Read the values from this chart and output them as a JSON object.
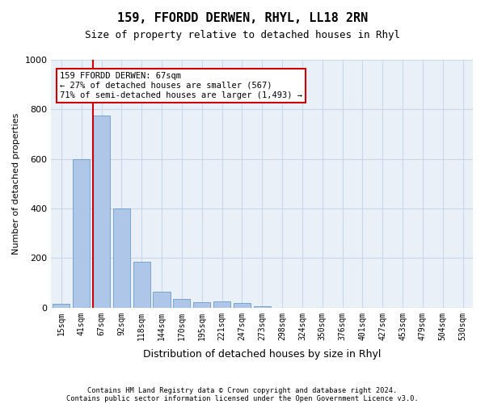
{
  "title1": "159, FFORDD DERWEN, RHYL, LL18 2RN",
  "title2": "Size of property relative to detached houses in Rhyl",
  "xlabel": "Distribution of detached houses by size in Rhyl",
  "ylabel": "Number of detached properties",
  "footnote1": "Contains HM Land Registry data © Crown copyright and database right 2024.",
  "footnote2": "Contains public sector information licensed under the Open Government Licence v3.0.",
  "bin_labels": [
    "15sqm",
    "41sqm",
    "67sqm",
    "92sqm",
    "118sqm",
    "144sqm",
    "170sqm",
    "195sqm",
    "221sqm",
    "247sqm",
    "273sqm",
    "298sqm",
    "324sqm",
    "350sqm",
    "376sqm",
    "401sqm",
    "427sqm",
    "453sqm",
    "479sqm",
    "504sqm",
    "530sqm"
  ],
  "bar_heights": [
    15,
    600,
    775,
    400,
    185,
    65,
    35,
    22,
    25,
    18,
    5,
    0,
    0,
    0,
    0,
    0,
    0,
    0,
    0,
    0,
    0
  ],
  "bar_color": "#aec6e8",
  "bar_edge_color": "#5a8fc0",
  "grid_color": "#c8d8e8",
  "background_color": "#eaf0f8",
  "annotation_box_text": "159 FFORDD DERWEN: 67sqm\n← 27% of detached houses are smaller (567)\n71% of semi-detached houses are larger (1,493) →",
  "annotation_box_color": "#cc0000",
  "property_line_bin_index": 2,
  "ylim": [
    0,
    1000
  ],
  "yticks": [
    0,
    200,
    400,
    600,
    800,
    1000
  ]
}
